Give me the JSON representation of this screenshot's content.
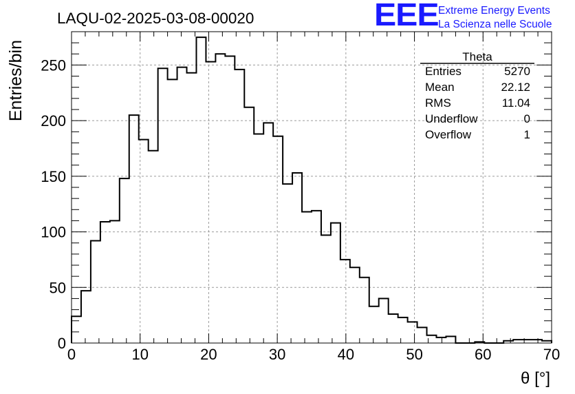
{
  "chart_data": {
    "type": "histogram",
    "title": "LAQU-02-2025-03-08-00020",
    "xlabel": "θ [°]",
    "ylabel": "Entries/bin",
    "xlim": [
      0,
      70
    ],
    "ylim": [
      0,
      280
    ],
    "xticks": [
      0,
      10,
      20,
      30,
      40,
      50,
      60,
      70
    ],
    "yticks": [
      0,
      50,
      100,
      150,
      200,
      250
    ],
    "grid": true,
    "bin_width": 1.4,
    "bin_edges_start": 0,
    "values": [
      24,
      47,
      92,
      109,
      110,
      148,
      205,
      183,
      173,
      247,
      237,
      248,
      243,
      275,
      253,
      260,
      258,
      246,
      212,
      188,
      198,
      186,
      143,
      153,
      118,
      119,
      97,
      108,
      75,
      68,
      59,
      33,
      40,
      26,
      23,
      19,
      14,
      7,
      5,
      6,
      0,
      0,
      1,
      0,
      0,
      2,
      3,
      3,
      3,
      2
    ],
    "stats_box": {
      "title": "Theta",
      "rows": [
        {
          "label": "Entries",
          "value": "5270"
        },
        {
          "label": "Mean",
          "value": "22.12"
        },
        {
          "label": "RMS",
          "value": "11.04"
        },
        {
          "label": "Underflow",
          "value": "0"
        },
        {
          "label": "Overflow",
          "value": "1"
        }
      ]
    }
  },
  "logo": {
    "mark": "EEE",
    "line1": "Extreme Energy Events",
    "line2": "La Scienza nelle Scuole",
    "color": "#1a1aff"
  }
}
